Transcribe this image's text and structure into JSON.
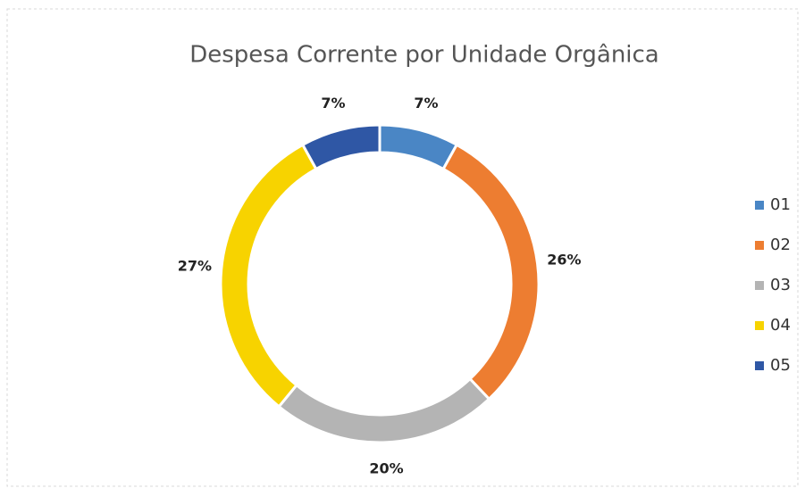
{
  "chart_data": {
    "type": "donut",
    "title": "Despesa Corrente por Unidade Orgânica",
    "categories": [
      "01",
      "02",
      "03",
      "04",
      "05"
    ],
    "values": [
      7,
      26,
      20,
      27,
      7
    ],
    "value_labels": [
      "7%",
      "26%",
      "20%",
      "27%",
      "7%"
    ],
    "colors": [
      "#4a86c5",
      "#ed7d31",
      "#b4b4b4",
      "#f7d300",
      "#2f57a5"
    ],
    "legend": "right"
  }
}
